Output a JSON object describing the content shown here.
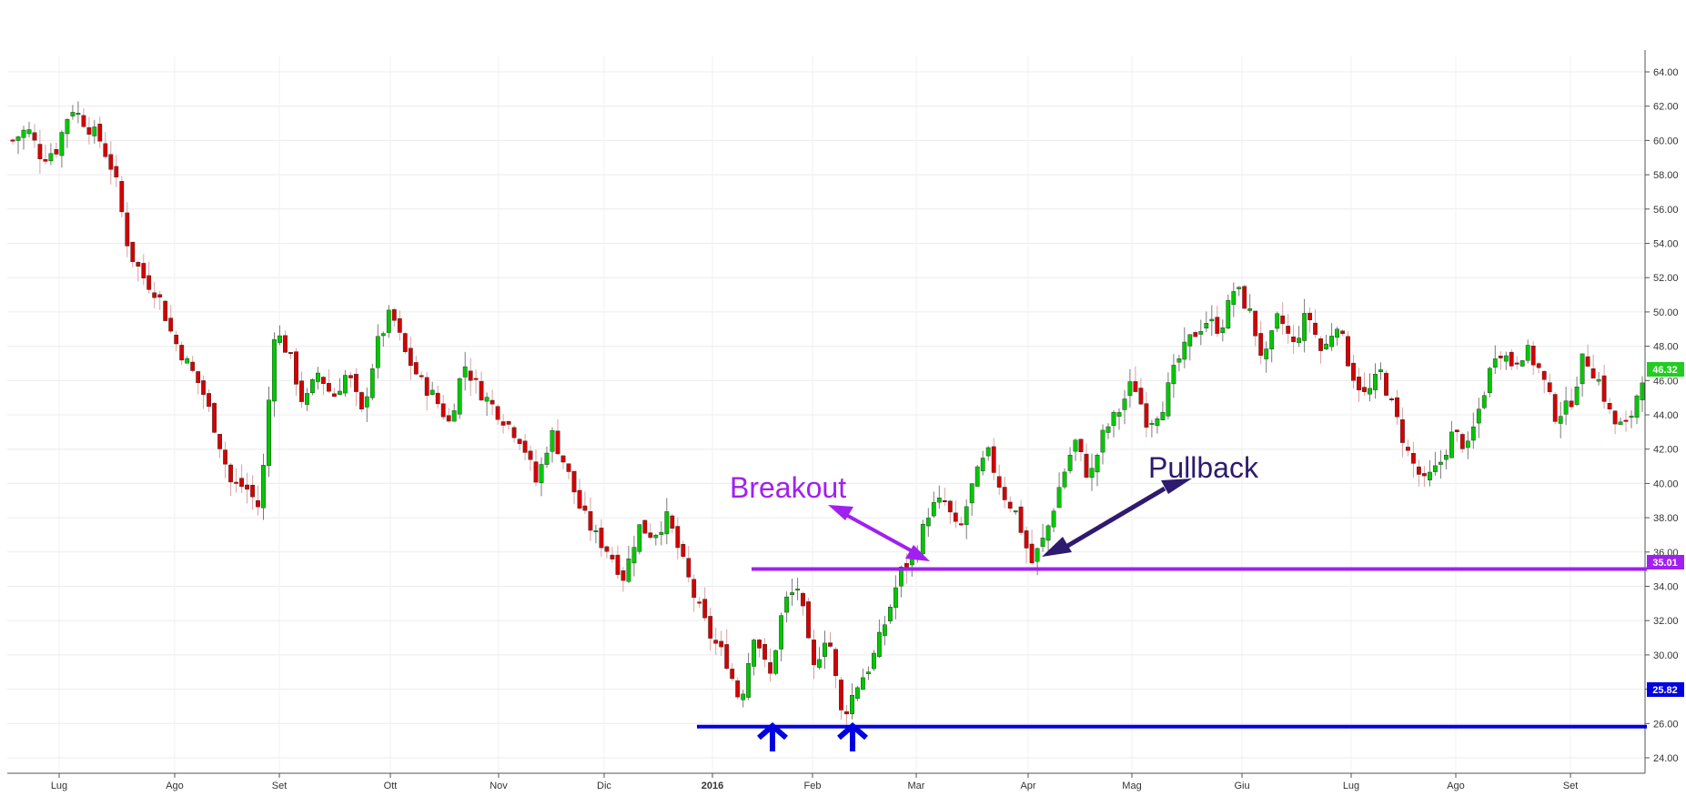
{
  "chart_data": {
    "type": "candlestick",
    "y_axis": {
      "position": "right",
      "ylim": [
        23,
        65
      ],
      "ticks": [
        "24.00",
        "26.00",
        "28.00",
        "30.00",
        "32.00",
        "34.00",
        "36.00",
        "38.00",
        "40.00",
        "42.00",
        "44.00",
        "46.00",
        "48.00",
        "50.00",
        "52.00",
        "54.00",
        "56.00",
        "58.00",
        "60.00",
        "62.00",
        "64.00"
      ],
      "tick_values": [
        24,
        26,
        28,
        30,
        32,
        34,
        36,
        38,
        40,
        42,
        44,
        46,
        48,
        50,
        52,
        54,
        56,
        58,
        60,
        62,
        64
      ]
    },
    "x_axis": {
      "months": [
        "Lug",
        "Ago",
        "Set",
        "Ott",
        "Nov",
        "Dic",
        "2016",
        "Feb",
        "Mar",
        "Apr",
        "Mag",
        "Giu",
        "Lug",
        "Ago",
        "Set"
      ],
      "month_bold": [
        false,
        false,
        false,
        false,
        false,
        false,
        true,
        false,
        false,
        false,
        false,
        false,
        false,
        false,
        false
      ]
    },
    "grid": true,
    "up_color": "#00c800",
    "down_color": "#d40000",
    "close_path": [
      60.0,
      60.7,
      59.0,
      59.5,
      62.0,
      61.0,
      60.0,
      58.0,
      53.5,
      52.0,
      51.0,
      48.5,
      47.0,
      45.5,
      43.0,
      40.0,
      39.8,
      38.5,
      49.0,
      47.5,
      44.5,
      46.5,
      45.0,
      46.5,
      44.0,
      48.0,
      50.0,
      47.5,
      46.0,
      45.0,
      43.5,
      47.0,
      45.5,
      44.5,
      43.5,
      42.5,
      40.0,
      43.0,
      41.0,
      38.5,
      37.0,
      36.0,
      34.5,
      37.5,
      37.0,
      38.0,
      35.5,
      33.0,
      31.0,
      29.8,
      27.2,
      31.5,
      28.5,
      33.0,
      34.0,
      29.0,
      31.5,
      26.3,
      28.2,
      29.5,
      32.0,
      34.8,
      35.8,
      38.5,
      39.0,
      37.0,
      40.0,
      41.8,
      39.5,
      38.2,
      35.3,
      37.0,
      40.0,
      42.5,
      40.2,
      43.0,
      44.2,
      46.0,
      43.5,
      44.5,
      47.0,
      48.5,
      49.5,
      49.0,
      51.5,
      50.0,
      47.0,
      49.8,
      48.0,
      50.0,
      47.5,
      49.5,
      46.5,
      45.0,
      46.5,
      44.0,
      41.5,
      40.0,
      41.0,
      43.0,
      42.0,
      45.0,
      48.0,
      47.0,
      47.8,
      46.5,
      44.0,
      44.5,
      47.5,
      46.0,
      43.5,
      43.3,
      46.3
    ],
    "close_path_note": "",
    "last_price": "46.32",
    "horizontal_lines": [
      {
        "value": 35.01,
        "label": "35.01",
        "color": "#a020f0"
      },
      {
        "value": 25.82,
        "label": "25.82",
        "color": "#0000e0"
      }
    ],
    "annotations": {
      "breakout": {
        "text": "Breakout",
        "color": "#a020f0"
      },
      "pullback": {
        "text": "Pullback",
        "color": "#2e1a6e"
      },
      "double_bottom_arrows_color": "#0000e0"
    }
  }
}
